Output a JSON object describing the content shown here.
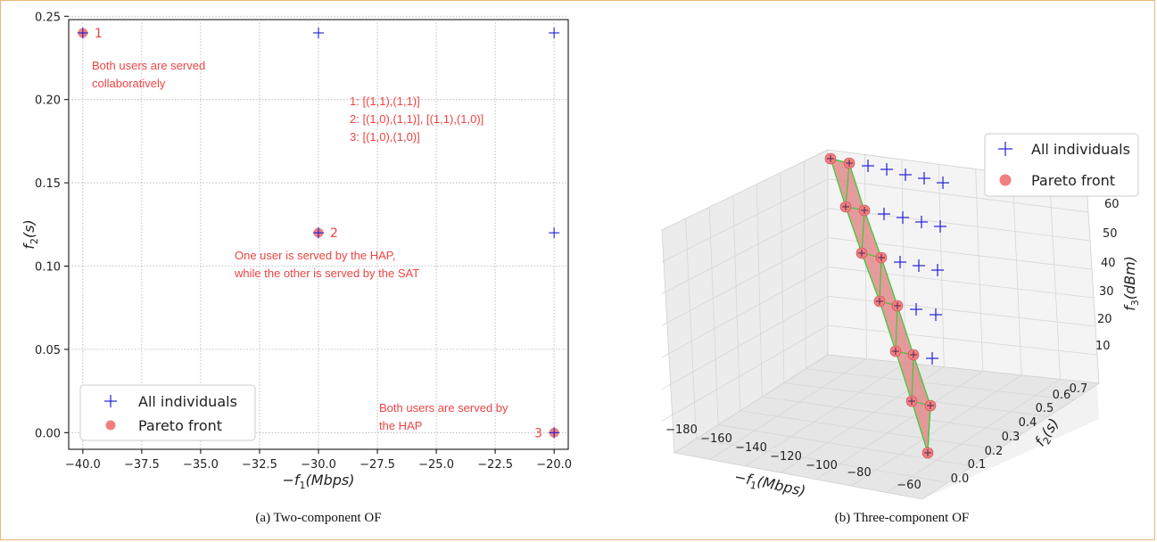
{
  "chart_data": [
    {
      "type": "scatter",
      "caption": "(a) Two-component OF",
      "xlabel_main": "−f",
      "xlabel_sub": "1",
      "xlabel_unit": "(Mbps)",
      "ylabel_main": "f",
      "ylabel_sub": "2",
      "ylabel_unit": "(s)",
      "xlim": [
        -40.6,
        -19.4
      ],
      "ylim": [
        -0.01,
        0.248
      ],
      "xticks": [
        -40.0,
        -37.5,
        -35.0,
        -32.5,
        -30.0,
        -27.5,
        -25.0,
        -22.5,
        -20.0
      ],
      "xtick_labels": [
        "−40.0",
        "−37.5",
        "−35.0",
        "−32.5",
        "−30.0",
        "−27.5",
        "−25.0",
        "−22.5",
        "−20.0"
      ],
      "yticks": [
        0.0,
        0.05,
        0.1,
        0.15,
        0.2,
        0.25
      ],
      "ytick_labels": [
        "0.00",
        "0.05",
        "0.10",
        "0.15",
        "0.20",
        "0.25"
      ],
      "grid": true,
      "legend_position": "lower-left",
      "series": [
        {
          "name": "All individuals",
          "marker": "plus",
          "color": "#1f1fd6",
          "x": [
            -40,
            -30,
            -20,
            -30,
            -20,
            -20
          ],
          "y": [
            0.24,
            0.24,
            0.24,
            0.12,
            0.12,
            0.0
          ]
        },
        {
          "name": "Pareto front",
          "marker": "circle",
          "color": "#f08080",
          "x": [
            -40,
            -30,
            -20
          ],
          "y": [
            0.24,
            0.12,
            0.0
          ]
        }
      ],
      "point_labels": [
        {
          "text": "1",
          "x": -40,
          "y": 0.24
        },
        {
          "text": "2",
          "x": -30,
          "y": 0.12
        },
        {
          "text": "3",
          "x": -20,
          "y": 0.0
        }
      ],
      "annotations": [
        "Both users are served",
        "collaboratively",
        "1: [(1,1),(1,1)]",
        "2: [(1,0),(1,1)], [(1,1),(1,0)]",
        "3: [(1,0),(1,0)]",
        "One user is served by the HAP,",
        "while the other is served by the SAT",
        "Both users are served by",
        "the HAP"
      ]
    },
    {
      "type": "scatter3d",
      "caption": "(b) Three-component OF",
      "xlabel_main": "−f",
      "xlabel_sub": "1",
      "xlabel_unit": "(Mbps)",
      "ylabel_main": "f",
      "ylabel_sub": "2",
      "ylabel_unit": "(s)",
      "zlabel_main": "f",
      "zlabel_sub": "3",
      "zlabel_unit": "(dBm)",
      "xtick_labels": [
        "−180",
        "−160",
        "−140",
        "−120",
        "−100",
        "−80",
        "−60"
      ],
      "ytick_labels": [
        "0.0",
        "0.1",
        "0.2",
        "0.3",
        "0.4",
        "0.5",
        "0.6",
        "0.7"
      ],
      "ztick_labels": [
        "10",
        "20",
        "30",
        "40",
        "50",
        "60"
      ],
      "legend_position": "upper-right",
      "series": [
        {
          "name": "All individuals",
          "marker": "plus",
          "color": "#1f1fd6"
        },
        {
          "name": "Pareto front",
          "marker": "circle",
          "color": "#f08080"
        }
      ]
    }
  ]
}
